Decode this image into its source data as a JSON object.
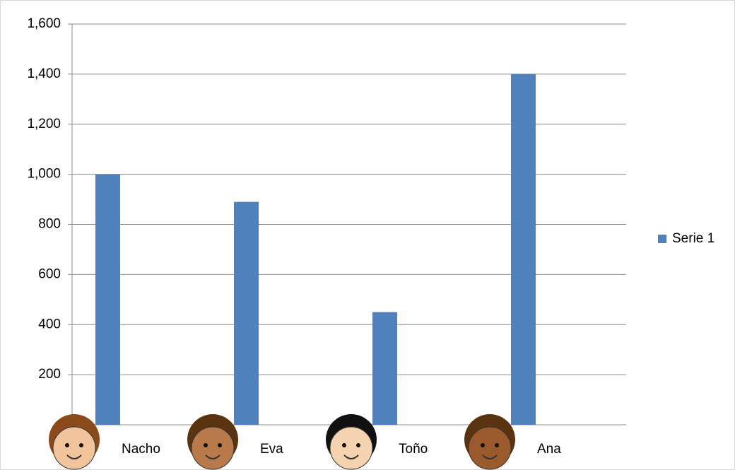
{
  "chart_data": {
    "type": "bar",
    "categories": [
      "Nacho",
      "Eva",
      "Toño",
      "Ana"
    ],
    "series": [
      {
        "name": "Serie 1",
        "color": "#4f81bd",
        "values": [
          1000,
          890,
          450,
          1400
        ]
      }
    ],
    "ylim": [
      0,
      1600
    ],
    "yticks": [
      200,
      400,
      600,
      800,
      {
        "value": 1000,
        "label": "1,000"
      },
      {
        "value": 1200,
        "label": "1,200"
      },
      {
        "value": 1400,
        "label": "1,400"
      },
      {
        "value": 1600,
        "label": "1,600"
      }
    ],
    "grid": true,
    "legend": "right"
  }
}
